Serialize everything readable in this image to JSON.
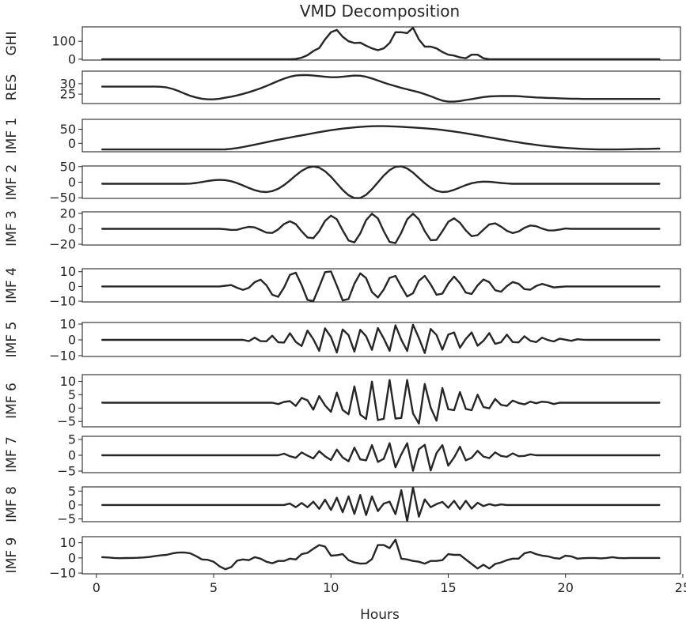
{
  "chart_data": {
    "type": "line",
    "title": "VMD Decomposition",
    "xlabel": "Hours",
    "xlim": [
      -0.6,
      24.9
    ],
    "xticks": [
      0,
      5,
      10,
      15,
      20,
      25
    ],
    "xtick_labels": [
      "0",
      "5",
      "10",
      "15",
      "20",
      "25"
    ],
    "grid": false,
    "line_color": "#262626",
    "x_start": 0.25,
    "x_step": 0.25,
    "panels": [
      {
        "name": "GHI",
        "ylim": [
          -5,
          180
        ],
        "yticks": [
          0,
          100
        ],
        "ytick_labels": [
          "0",
          "100"
        ],
        "values": [
          0,
          0,
          0,
          0,
          0,
          0,
          0,
          0,
          0,
          0,
          0,
          0,
          0,
          0,
          0,
          0,
          0,
          0,
          0,
          0,
          0,
          0,
          0,
          0,
          0,
          0,
          0,
          0,
          0,
          0,
          0,
          0,
          0,
          1,
          8,
          22,
          45,
          62,
          110,
          150,
          163,
          125,
          100,
          90,
          92,
          75,
          60,
          50,
          60,
          90,
          150,
          150,
          145,
          175,
          110,
          70,
          70,
          60,
          40,
          25,
          20,
          10,
          5,
          25,
          25,
          5,
          0,
          0,
          0,
          0,
          0,
          0,
          0,
          0,
          0,
          0,
          0,
          0,
          0,
          0,
          0,
          0,
          0,
          0,
          0,
          0,
          0,
          0,
          0,
          0,
          0,
          0,
          0,
          0,
          0,
          0
        ]
      },
      {
        "name": "RES",
        "ylim": [
          20.5,
          36
        ],
        "yticks": [
          25,
          30
        ],
        "ytick_labels": [
          "25",
          "30"
        ],
        "values": [
          28.6,
          28.6,
          28.6,
          28.6,
          28.6,
          28.6,
          28.6,
          28.6,
          28.6,
          28.6,
          28.5,
          28.2,
          27.5,
          26.5,
          25.3,
          24.2,
          23.4,
          22.8,
          22.5,
          22.5,
          22.8,
          23.3,
          23.8,
          24.4,
          25.1,
          25.9,
          26.8,
          27.8,
          28.9,
          30.1,
          31.3,
          32.4,
          33.3,
          33.9,
          34.1,
          34.1,
          33.9,
          33.6,
          33.3,
          33.1,
          33.1,
          33.3,
          33.6,
          33.9,
          33.8,
          33.3,
          32.5,
          31.5,
          30.5,
          29.6,
          28.8,
          28.0,
          27.3,
          26.6,
          25.9,
          25.0,
          24.0,
          22.9,
          21.9,
          21.4,
          21.4,
          21.7,
          22.2,
          22.6,
          23.1,
          23.6,
          23.9,
          24.0,
          24.1,
          24.1,
          24.1,
          24.0,
          23.8,
          23.6,
          23.4,
          23.3,
          23.2,
          23.1,
          23.0,
          22.9,
          22.8,
          22.8,
          22.7,
          22.7,
          22.7,
          22.7,
          22.7,
          22.7,
          22.7,
          22.7,
          22.7,
          22.7,
          22.7,
          22.7,
          22.7,
          22.7
        ]
      },
      {
        "name": "IMF 1",
        "ylim": [
          -30,
          85
        ],
        "yticks": [
          0,
          50
        ],
        "ytick_labels": [
          "0",
          "50"
        ],
        "values": [
          -22.0,
          -22.0,
          -22.0,
          -22.0,
          -22.0,
          -22.0,
          -22.0,
          -22.0,
          -22.0,
          -22.0,
          -22.0,
          -22.0,
          -22.0,
          -22.0,
          -22.0,
          -22.0,
          -22.0,
          -22.0,
          -22.0,
          -22.0,
          -22.0,
          -21.6,
          -19.7,
          -16.8,
          -13.2,
          -9.2,
          -4.9,
          -0.5,
          4.0,
          8.3,
          12.5,
          16.6,
          20.5,
          24.3,
          28.2,
          32.0,
          35.9,
          39.6,
          43.1,
          46.5,
          49.5,
          52.1,
          54.4,
          56.4,
          58.0,
          59.4,
          60.5,
          61.0,
          60.9,
          60.4,
          59.6,
          58.5,
          57.3,
          56.0,
          54.6,
          53.2,
          51.5,
          49.6,
          47.3,
          44.7,
          41.9,
          38.8,
          35.4,
          32.0,
          28.4,
          24.8,
          21.1,
          17.4,
          13.7,
          10.1,
          6.6,
          3.3,
          0.1,
          -2.9,
          -5.7,
          -8.3,
          -10.6,
          -12.7,
          -14.6,
          -16.3,
          -17.7,
          -18.9,
          -19.9,
          -20.8,
          -21.4,
          -21.8,
          -22.0,
          -22.0,
          -21.8,
          -21.4,
          -21.0,
          -20.6,
          -20.2,
          -19.8,
          -19.3,
          -18.9
        ]
      },
      {
        "name": "IMF 2",
        "ylim": [
          -52,
          52
        ],
        "yticks": [
          -50,
          0,
          50
        ],
        "ytick_labels": [
          "−50",
          "0",
          "50"
        ],
        "values": [
          -5.0,
          -5.0,
          -5.0,
          -5.0,
          -5.0,
          -5.0,
          -5.0,
          -5.0,
          -5.0,
          -5.0,
          -5.0,
          -5.0,
          -5.0,
          -5.0,
          -5.0,
          -4.6,
          -2.6,
          0.4,
          3.7,
          6.3,
          7.4,
          6.5,
          3.1,
          -2.7,
          -10.3,
          -18.4,
          -25.5,
          -30.3,
          -31.6,
          -28.7,
          -21.2,
          -9.4,
          5.6,
          21.7,
          36.2,
          46.5,
          50.4,
          46.6,
          35.2,
          17.4,
          -3.8,
          -24.9,
          -41.8,
          -51.1,
          -50.8,
          -40.5,
          -22.5,
          -0.5,
          21.3,
          38.9,
          49.4,
          51.1,
          44.2,
          30.8,
          13.8,
          -3.4,
          -17.8,
          -27.6,
          -31.6,
          -30.1,
          -24.5,
          -16.9,
          -9.4,
          -3.4,
          0.3,
          1.7,
          1.2,
          -0.5,
          -2.5,
          -4.1,
          -5.0,
          -5.0,
          -5.0,
          -5.0,
          -5.0,
          -5.0,
          -5.0,
          -5.0,
          -5.0,
          -5.0,
          -5.0,
          -5.0,
          -5.0,
          -5.0,
          -5.0,
          -5.0,
          -5.0,
          -5.0,
          -5.0,
          -5.0,
          -5.0,
          -5.0,
          -5.0,
          -5.0,
          -5.0,
          -5.0
        ]
      },
      {
        "name": "IMF 3",
        "ylim": [
          -21,
          22
        ],
        "yticks": [
          -20,
          0,
          20
        ],
        "ytick_labels": [
          "−20",
          "0",
          "20"
        ],
        "values": [
          0.0,
          0.0,
          0.0,
          0.0,
          0.0,
          0.0,
          0.0,
          0.0,
          0.0,
          0.0,
          0.0,
          0.0,
          0.0,
          0.0,
          0.0,
          0.0,
          0.0,
          0.0,
          0.0,
          0.0,
          0.0,
          -0.5,
          -1.4,
          -1.2,
          0.9,
          2.5,
          1.8,
          -1.4,
          -4.9,
          -5.3,
          -0.8,
          6.2,
          9.8,
          6.1,
          -3.2,
          -11.2,
          -12.1,
          -3.1,
          10.2,
          17.0,
          12.4,
          -2.0,
          -15.1,
          -17.6,
          -6.0,
          11.3,
          19.5,
          13.5,
          -3.0,
          -17.0,
          -18.5,
          -5.0,
          12.3,
          19.5,
          12.3,
          -3.0,
          -14.8,
          -14.3,
          -3.2,
          9.0,
          13.6,
          7.9,
          -2.1,
          -9.5,
          -8.2,
          -1.1,
          5.7,
          7.1,
          2.9,
          -2.6,
          -5.5,
          -3.5,
          1.2,
          4.3,
          3.4,
          0.3,
          -2.0,
          -2.2,
          -0.9,
          0.4,
          0.0,
          0.0,
          0.0,
          0.0,
          0.0,
          0.0,
          0.0,
          0.0,
          0.0,
          0.0,
          0.0,
          0.0,
          0.0,
          0.0,
          0.0,
          0.0
        ]
      },
      {
        "name": "IMF 4",
        "ylim": [
          -10.5,
          12
        ],
        "yticks": [
          -10,
          0,
          10
        ],
        "ytick_labels": [
          "−10",
          "0",
          "10"
        ],
        "values": [
          0.0,
          0.0,
          0.0,
          0.0,
          0.0,
          0.0,
          0.0,
          0.0,
          0.0,
          0.0,
          0.0,
          0.0,
          0.0,
          0.0,
          0.0,
          0.0,
          0.0,
          0.0,
          0.0,
          0.0,
          0.0,
          0.5,
          0.9,
          -0.9,
          -2.3,
          -0.9,
          2.9,
          4.6,
          0.8,
          -5.6,
          -7.0,
          -0.7,
          7.8,
          9.3,
          0.9,
          -9.1,
          -9.9,
          -0.4,
          9.7,
          10.2,
          0.6,
          -9.5,
          -8.5,
          1.8,
          8.9,
          5.7,
          -3.8,
          -7.5,
          -2.1,
          5.8,
          7.1,
          -0.1,
          -6.8,
          -4.6,
          3.8,
          7.2,
          1.4,
          -5.6,
          -4.9,
          2.0,
          6.7,
          2.2,
          -4.2,
          -5.1,
          0.7,
          4.7,
          2.9,
          -2.5,
          -3.6,
          0.2,
          3.0,
          1.8,
          -1.8,
          -2.2,
          0.3,
          1.7,
          0.6,
          -0.7,
          -0.3,
          0.0,
          0.0,
          0.0,
          0.0,
          0.0,
          0.0,
          0.0,
          0.0,
          0.0,
          0.0,
          0.0,
          0.0,
          0.0,
          0.0,
          0.0,
          0.0,
          0.0
        ]
      },
      {
        "name": "IMF 5",
        "ylim": [
          -10.5,
          11
        ],
        "yticks": [
          -10,
          0,
          10
        ],
        "ytick_labels": [
          "−10",
          "0",
          "10"
        ],
        "values": [
          0.0,
          0.0,
          0.0,
          0.0,
          0.0,
          0.0,
          0.0,
          0.0,
          0.0,
          0.0,
          0.0,
          0.0,
          0.0,
          0.0,
          0.0,
          0.0,
          0.0,
          0.0,
          0.0,
          0.0,
          0.0,
          0.0,
          0.0,
          0.0,
          0.0,
          -0.8,
          1.4,
          -0.8,
          -0.9,
          2.6,
          -1.5,
          -1.7,
          4.2,
          -1.3,
          -3.9,
          5.9,
          0.4,
          -6.9,
          7.3,
          1.8,
          -8.0,
          6.6,
          3.0,
          -7.4,
          6.4,
          2.3,
          -6.3,
          7.5,
          0.9,
          -6.9,
          9.2,
          0.1,
          -7.0,
          9.6,
          1.2,
          -8.3,
          6.9,
          3.1,
          -6.2,
          3.3,
          4.7,
          -5.0,
          0.6,
          4.7,
          -3.7,
          -0.6,
          4.3,
          -2.5,
          -1.5,
          3.3,
          -1.4,
          -1.6,
          2.3,
          -0.6,
          -1.4,
          1.4,
          -0.1,
          -1.0,
          0.8,
          0.1,
          -0.6,
          0.4,
          0.1,
          0.0,
          0.0,
          0.0,
          0.0,
          0.0,
          0.0,
          0.0,
          0.0,
          0.0,
          0.0,
          0.0,
          0.0,
          0.0
        ]
      },
      {
        "name": "IMF 6",
        "ylim": [
          -7,
          12.5
        ],
        "yticks": [
          -5,
          0,
          5,
          10
        ],
        "ytick_labels": [
          "−5",
          "0",
          "5",
          "10"
        ],
        "values": [
          2.0,
          2.0,
          2.0,
          2.0,
          2.0,
          2.0,
          2.0,
          2.0,
          2.0,
          2.0,
          2.0,
          2.0,
          2.0,
          2.0,
          2.0,
          2.0,
          2.0,
          2.0,
          2.0,
          2.0,
          2.0,
          2.0,
          2.0,
          2.0,
          2.0,
          2.0,
          2.0,
          2.0,
          2.0,
          2.0,
          1.5,
          2.3,
          2.6,
          0.8,
          3.8,
          2.9,
          -0.6,
          4.5,
          1.0,
          -1.4,
          5.8,
          -0.7,
          -2.3,
          8.1,
          -2.4,
          -4.1,
          9.9,
          -4.5,
          -4.0,
          10.5,
          -3.9,
          -3.7,
          10.5,
          -2.0,
          -5.8,
          9.0,
          0.2,
          -4.7,
          7.5,
          -0.4,
          -0.8,
          6.0,
          -0.3,
          -0.8,
          5.0,
          0.4,
          -0.1,
          3.4,
          1.2,
          0.8,
          2.8,
          1.9,
          1.4,
          2.4,
          1.8,
          2.4,
          2.2,
          1.5,
          2.0,
          2.0,
          2.0,
          2.0,
          2.0,
          2.0,
          2.0,
          2.0,
          2.0,
          2.0,
          2.0,
          2.0,
          2.0,
          2.0,
          2.0,
          2.0,
          2.0,
          2.0
        ]
      },
      {
        "name": "IMF 7",
        "ylim": [
          -5.5,
          6
        ],
        "yticks": [
          -5,
          0,
          5
        ],
        "ytick_labels": [
          "−5",
          "0",
          "5"
        ],
        "values": [
          0.0,
          0.0,
          0.0,
          0.0,
          0.0,
          0.0,
          0.0,
          0.0,
          0.0,
          0.0,
          0.0,
          0.0,
          0.0,
          0.0,
          0.0,
          0.0,
          0.0,
          0.0,
          0.0,
          0.0,
          0.0,
          0.0,
          0.0,
          0.0,
          0.0,
          0.0,
          0.0,
          0.0,
          0.0,
          0.0,
          0.0,
          0.5,
          -0.3,
          -0.8,
          0.9,
          -0.1,
          -1.0,
          1.3,
          -0.3,
          -1.5,
          1.8,
          -0.7,
          -1.9,
          2.4,
          -1.3,
          -1.6,
          3.2,
          -2.1,
          -1.1,
          3.8,
          -3.8,
          0.3,
          3.8,
          -4.9,
          1.9,
          3.3,
          -4.8,
          0.7,
          3.2,
          -3.3,
          -0.7,
          2.7,
          -1.6,
          -0.8,
          1.4,
          -0.4,
          -0.9,
          0.9,
          -0.2,
          -0.5,
          0.6,
          -0.3,
          -0.2,
          0.3,
          0.0,
          0.0,
          0.0,
          0.0,
          0.0,
          0.0,
          0.0,
          0.0,
          0.0,
          0.0,
          0.0,
          0.0,
          0.0,
          0.0,
          0.0,
          0.0,
          0.0,
          0.0,
          0.0,
          0.0,
          0.0,
          0.0
        ]
      },
      {
        "name": "IMF 8",
        "ylim": [
          -6,
          6.5
        ],
        "yticks": [
          -5,
          0,
          5
        ],
        "ytick_labels": [
          "−5",
          "0",
          "5"
        ],
        "values": [
          0.0,
          0.0,
          0.0,
          0.0,
          0.0,
          0.0,
          0.0,
          0.0,
          0.0,
          0.0,
          0.0,
          0.0,
          0.0,
          0.0,
          0.0,
          0.0,
          0.0,
          0.0,
          0.0,
          0.0,
          0.0,
          0.0,
          0.0,
          0.0,
          0.0,
          0.0,
          0.0,
          0.0,
          0.0,
          0.0,
          0.0,
          0.0,
          0.5,
          -0.8,
          0.7,
          -0.8,
          1.2,
          -1.4,
          1.9,
          -1.8,
          2.6,
          -2.6,
          3.1,
          -3.2,
          3.6,
          -3.6,
          3.1,
          -2.2,
          0.5,
          1.2,
          -3.3,
          5.3,
          -5.8,
          6.3,
          -4.2,
          2.0,
          -0.8,
          0.3,
          1.1,
          -1.0,
          1.5,
          -1.5,
          1.5,
          -1.3,
          0.8,
          -0.4,
          0.3,
          -0.2,
          0.2,
          0.0,
          0.0,
          0.0,
          0.0,
          0.0,
          0.0,
          0.0,
          0.0,
          0.0,
          0.0,
          0.0,
          0.0,
          0.0,
          0.0,
          0.0,
          0.0,
          0.0,
          0.0,
          0.0,
          0.0,
          0.0,
          0.0,
          0.0,
          0.0,
          0.0,
          0.0,
          0.0
        ]
      },
      {
        "name": "IMF 9",
        "ylim": [
          -10.5,
          14
        ],
        "yticks": [
          -10,
          0,
          10
        ],
        "ytick_labels": [
          "−10",
          "0",
          "10"
        ],
        "values": [
          0.5,
          0.3,
          0.0,
          -0.2,
          -0.1,
          0.0,
          0.1,
          0.3,
          0.6,
          1.2,
          1.7,
          2.0,
          3.0,
          3.5,
          3.6,
          3.0,
          1.2,
          -1.0,
          -1.2,
          -2.5,
          -5.5,
          -7.5,
          -6.0,
          -1.8,
          -1.0,
          -1.5,
          0.5,
          -0.5,
          -2.5,
          -3.5,
          -2.0,
          -2.0,
          -0.5,
          -1.0,
          2.5,
          3.3,
          6.0,
          8.5,
          7.5,
          1.5,
          1.8,
          2.5,
          -1.5,
          -3.0,
          -3.8,
          -3.6,
          -0.8,
          8.5,
          8.5,
          6.5,
          12.0,
          -0.5,
          -1.0,
          -2.0,
          -2.5,
          -3.8,
          -2.0,
          -2.0,
          -1.5,
          2.5,
          2.0,
          2.0,
          -1.0,
          -4.0,
          -7.0,
          -4.5,
          -7.0,
          -4.0,
          -3.0,
          -1.5,
          -0.5,
          -0.5,
          3.0,
          4.0,
          2.5,
          1.5,
          1.0,
          0.0,
          -0.5,
          1.5,
          1.0,
          -0.5,
          -0.2,
          0.0,
          0.0,
          -0.3,
          0.0,
          0.5,
          0.0,
          -0.2,
          0.0,
          0.0,
          0.0,
          0.0,
          0.0,
          0.0
        ]
      }
    ]
  }
}
